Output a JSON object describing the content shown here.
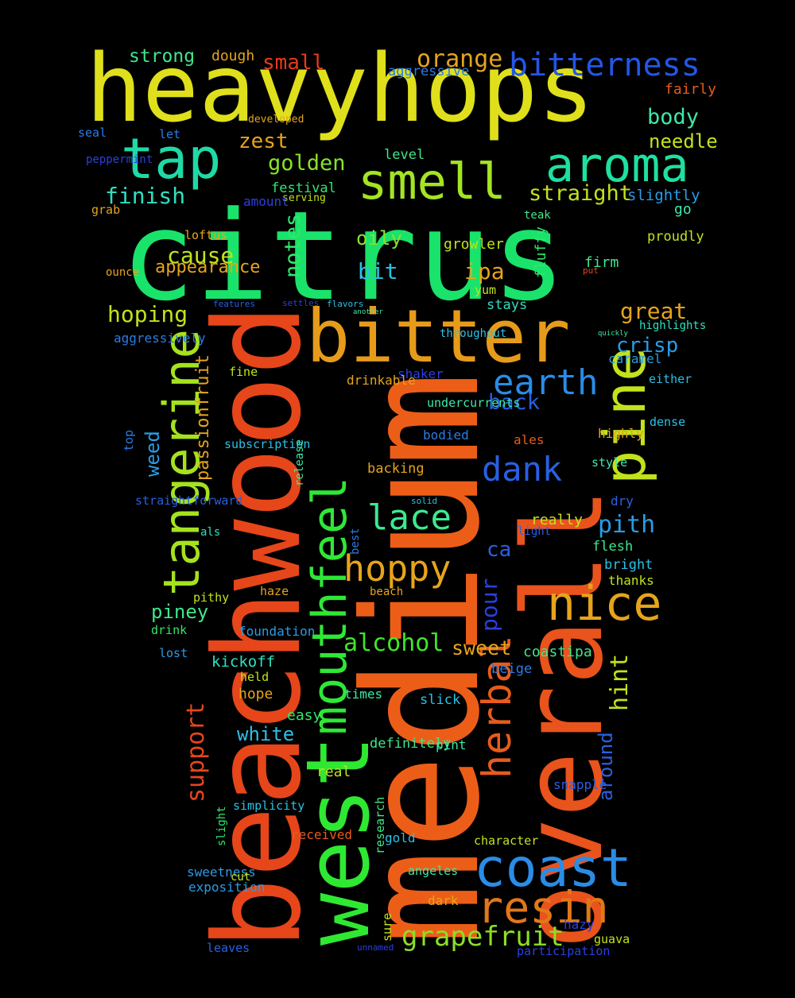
{
  "words": [
    {
      "t": "citrus",
      "c": "#19e36a"
    },
    {
      "t": "heavyhops",
      "c": "#dfe01b"
    },
    {
      "t": "medium",
      "c": "#ec5e18"
    },
    {
      "t": "beachwood",
      "c": "#e6461a"
    },
    {
      "t": "overall",
      "c": "#e9531c"
    },
    {
      "t": "west",
      "c": "#2fe832"
    },
    {
      "t": "bitter",
      "c": "#e69b1a"
    },
    {
      "t": "mouthfeel",
      "c": "#2ee835"
    },
    {
      "t": "tap",
      "c": "#1fd9a6"
    },
    {
      "t": "smell",
      "c": "#a4e423"
    },
    {
      "t": "aroma",
      "c": "#1ee0a0"
    },
    {
      "t": "bitterness",
      "c": "#2456e5"
    },
    {
      "t": "tangerine",
      "c": "#a5e21e"
    },
    {
      "t": "pine",
      "c": "#c1e21c"
    },
    {
      "t": "coast",
      "c": "#2a8ce6"
    },
    {
      "t": "resin",
      "c": "#e2771a"
    },
    {
      "t": "nice",
      "c": "#e6a41c"
    },
    {
      "t": "hoppy",
      "c": "#e6a41c"
    },
    {
      "t": "herbal",
      "c": "#e65c1c"
    },
    {
      "t": "earth",
      "c": "#2a8ce6"
    },
    {
      "t": "lace",
      "c": "#3ee88f"
    },
    {
      "t": "dank",
      "c": "#2860e2"
    },
    {
      "t": "grapefruit",
      "c": "#8cdf26"
    },
    {
      "t": "alcohol",
      "c": "#40e62a"
    },
    {
      "t": "orange",
      "c": "#e6a41c"
    },
    {
      "t": "small",
      "c": "#e63a1c"
    },
    {
      "t": "finish",
      "c": "#2ee0c0"
    },
    {
      "t": "straight",
      "c": "#c1e21c"
    },
    {
      "t": "golden",
      "c": "#88e22a"
    },
    {
      "t": "zest",
      "c": "#e6a41c"
    },
    {
      "t": "body",
      "c": "#3ee8a8"
    },
    {
      "t": "needle",
      "c": "#c1e21c"
    },
    {
      "t": "support",
      "c": "#e6461a"
    },
    {
      "t": "notes",
      "c": "#2ee86a"
    },
    {
      "t": "cause",
      "c": "#c1e21c"
    },
    {
      "t": "appearance",
      "c": "#e6a41c"
    },
    {
      "t": "hoping",
      "c": "#c1e21c"
    },
    {
      "t": "great",
      "c": "#e6a41c"
    },
    {
      "t": "crisp",
      "c": "#2a9ce6"
    },
    {
      "t": "bit",
      "c": "#2ac0e6"
    },
    {
      "t": "ipa",
      "c": "#e6a41c"
    },
    {
      "t": "oily",
      "c": "#88e22a"
    },
    {
      "t": "back",
      "c": "#2860e2"
    },
    {
      "t": "pour",
      "c": "#2a40e2"
    },
    {
      "t": "hint",
      "c": "#c1e21c"
    },
    {
      "t": "pith",
      "c": "#2a9ce6"
    },
    {
      "t": "sweet",
      "c": "#e6a41c"
    },
    {
      "t": "strong",
      "c": "#40e68a"
    },
    {
      "t": "dough",
      "c": "#e6a41c"
    },
    {
      "t": "aggressive",
      "c": "#2a7ce6"
    },
    {
      "t": "fairly",
      "c": "#e65c1c"
    },
    {
      "t": "weed",
      "c": "#2a9ce6"
    },
    {
      "t": "passionfruit",
      "c": "#e6a41c"
    },
    {
      "t": "piney",
      "c": "#40e68a"
    },
    {
      "t": "ca",
      "c": "#2a60e2"
    },
    {
      "t": "around",
      "c": "#2860e2"
    },
    {
      "t": "coastipa",
      "c": "#40e68a"
    },
    {
      "t": "white",
      "c": "#2ac0e6"
    },
    {
      "t": "kickoff",
      "c": "#2ee0c0"
    },
    {
      "t": "slightly",
      "c": "#2a9ce6"
    },
    {
      "t": "proudly",
      "c": "#c1e21c"
    },
    {
      "t": "go",
      "c": "#3ee8a8"
    },
    {
      "t": "growler",
      "c": "#c1e21c"
    },
    {
      "t": "fluffy",
      "c": "#2ee86a"
    },
    {
      "t": "firm",
      "c": "#40e68a"
    },
    {
      "t": "stays",
      "c": "#2ee0c0"
    },
    {
      "t": "highlights",
      "c": "#2ee0c0"
    },
    {
      "t": "caramel",
      "c": "#2a9ce6"
    },
    {
      "t": "either",
      "c": "#2ac0e6"
    },
    {
      "t": "dense",
      "c": "#2ac0e6"
    },
    {
      "t": "ales",
      "c": "#e65c1c"
    },
    {
      "t": "highly",
      "c": "#e6a41c"
    },
    {
      "t": "style",
      "c": "#3ee8a8"
    },
    {
      "t": "dry",
      "c": "#2a60e2"
    },
    {
      "t": "really",
      "c": "#c1e21c"
    },
    {
      "t": "flesh",
      "c": "#40e68a"
    },
    {
      "t": "bright",
      "c": "#2ac0e6"
    },
    {
      "t": "thanks",
      "c": "#c1e21c"
    },
    {
      "t": "light",
      "c": "#2a60e2"
    },
    {
      "t": "shaker",
      "c": "#2a40e2"
    },
    {
      "t": "drinkable",
      "c": "#e6a41c"
    },
    {
      "t": "fine",
      "c": "#c1e21c"
    },
    {
      "t": "undercurrents",
      "c": "#3ee8a8"
    },
    {
      "t": "bodied",
      "c": "#2a7ce6"
    },
    {
      "t": "backing",
      "c": "#e6a41c"
    },
    {
      "t": "subscription",
      "c": "#2ac0e6"
    },
    {
      "t": "release",
      "c": "#3ee8a8"
    },
    {
      "t": "best",
      "c": "#2a7ce6"
    },
    {
      "t": "straightforward",
      "c": "#2a60e2"
    },
    {
      "t": "als",
      "c": "#2ee0c0"
    },
    {
      "t": "top",
      "c": "#2a7ce6"
    },
    {
      "t": "aggressively",
      "c": "#2a7ce6"
    },
    {
      "t": "pithy",
      "c": "#c1e21c"
    },
    {
      "t": "haze",
      "c": "#e6a41c"
    },
    {
      "t": "beach",
      "c": "#e6a41c"
    },
    {
      "t": "foundation",
      "c": "#2a9ce6"
    },
    {
      "t": "drink",
      "c": "#2ee86a"
    },
    {
      "t": "lost",
      "c": "#2a9ce6"
    },
    {
      "t": "beige",
      "c": "#2a7ce6"
    },
    {
      "t": "hope",
      "c": "#e6a41c"
    },
    {
      "t": "held",
      "c": "#c1e21c"
    },
    {
      "t": "times",
      "c": "#3ee8a8"
    },
    {
      "t": "slick",
      "c": "#2ac0e6"
    },
    {
      "t": "easy",
      "c": "#2ee86a"
    },
    {
      "t": "definitely",
      "c": "#40e68a"
    },
    {
      "t": "pint",
      "c": "#3ee8a8"
    },
    {
      "t": "real",
      "c": "#c1e21c"
    },
    {
      "t": "snapple",
      "c": "#2a60e2"
    },
    {
      "t": "slight",
      "c": "#2ee86a"
    },
    {
      "t": "simplicity",
      "c": "#2ac0e6"
    },
    {
      "t": "received",
      "c": "#e65c1c"
    },
    {
      "t": "research",
      "c": "#40e68a"
    },
    {
      "t": "gold",
      "c": "#2ac0e6"
    },
    {
      "t": "character",
      "c": "#c1e21c"
    },
    {
      "t": "angeles",
      "c": "#3ee8a8"
    },
    {
      "t": "sweetness",
      "c": "#2a9ce6"
    },
    {
      "t": "cut",
      "c": "#c1e21c"
    },
    {
      "t": "exposition",
      "c": "#2a9ce6"
    },
    {
      "t": "dark",
      "c": "#e6a41c"
    },
    {
      "t": "hazy",
      "c": "#2a40e2"
    },
    {
      "t": "guava",
      "c": "#c1e21c"
    },
    {
      "t": "sure",
      "c": "#c1e21c"
    },
    {
      "t": "leaves",
      "c": "#2a60e2"
    },
    {
      "t": "participation",
      "c": "#2a40e2"
    },
    {
      "t": "unnamed",
      "c": "#2a40e2"
    },
    {
      "t": "festival",
      "c": "#2ee86a"
    },
    {
      "t": "serving",
      "c": "#c1e21c"
    },
    {
      "t": "amount",
      "c": "#2a40e2"
    },
    {
      "t": "loftus",
      "c": "#e6a41c"
    },
    {
      "t": "level",
      "c": "#40e68a"
    },
    {
      "t": "developed",
      "c": "#e6a41c"
    },
    {
      "t": "let",
      "c": "#2a7ce6"
    },
    {
      "t": "peppermint",
      "c": "#2a40e2"
    },
    {
      "t": "seal",
      "c": "#2a7ce6"
    },
    {
      "t": "grab",
      "c": "#e6a41c"
    },
    {
      "t": "teak",
      "c": "#40e68a"
    },
    {
      "t": "ounce",
      "c": "#e6a41c"
    },
    {
      "t": "put",
      "c": "#e6461a"
    },
    {
      "t": "throughout",
      "c": "#2ac0e6"
    },
    {
      "t": "yum",
      "c": "#c1e21c"
    },
    {
      "t": "settles",
      "c": "#2a40e2"
    },
    {
      "t": "flavors",
      "c": "#2ac0e6"
    },
    {
      "t": "features",
      "c": "#2a60e2"
    },
    {
      "t": "another",
      "c": "#3ee8a8"
    },
    {
      "t": "solid",
      "c": "#2ac0e6"
    },
    {
      "t": "quickly",
      "c": "#3ee8a8"
    },
    {
      "t": "worthwhile",
      "c": "#c1e21c"
    }
  ]
}
